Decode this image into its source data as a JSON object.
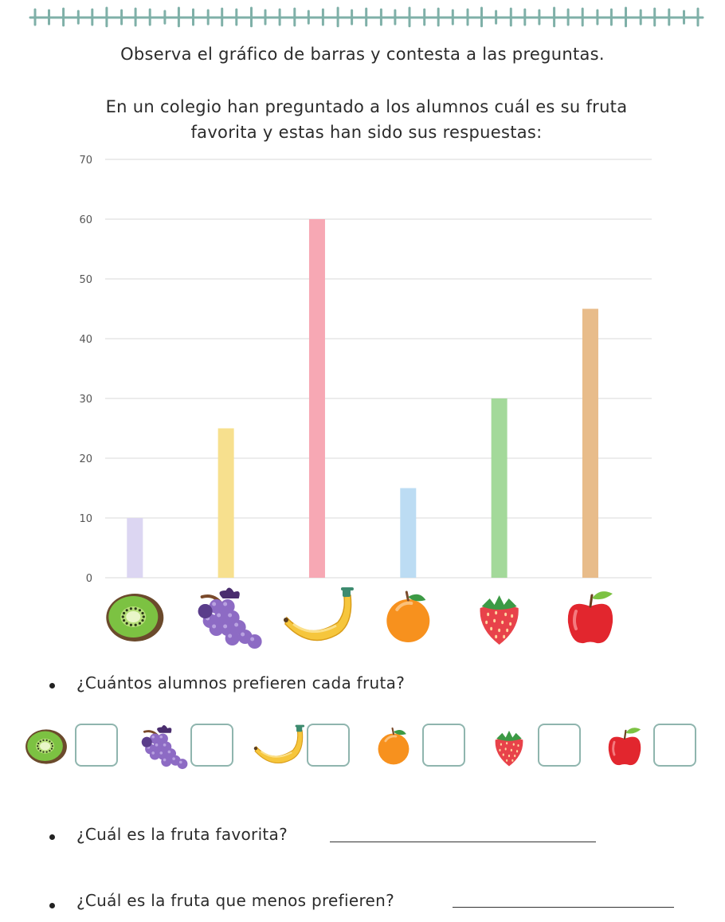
{
  "header": {
    "instruction": "Observa el gráfico de barras y contesta a las preguntas.",
    "context": "En un colegio han preguntado a los alumnos cuál es su fruta favorita y estas han sido sus respuestas:",
    "border_color": "#7fb0a8"
  },
  "chart_data": {
    "type": "bar",
    "categories": [
      "kiwi",
      "uvas",
      "plátano",
      "naranja",
      "fresa",
      "manzana"
    ],
    "values": [
      10,
      25,
      60,
      15,
      30,
      45
    ],
    "colors": [
      "#dcd6f2",
      "#f7e08e",
      "#f7a8b4",
      "#bcdcf3",
      "#a3d99a",
      "#e8bc8a"
    ],
    "ylim": [
      0,
      70
    ],
    "yticks": [
      "0",
      "10",
      "20",
      "30",
      "40",
      "50",
      "60",
      "70"
    ],
    "grid": true
  },
  "fruit_icons": [
    "kiwi-icon",
    "grapes-icon",
    "banana-icon",
    "orange-icon",
    "strawberry-icon",
    "apple-icon"
  ],
  "questions": {
    "q1": "¿Cuántos alumnos prefieren cada fruta?",
    "q2": "¿Cuál es la fruta favorita?",
    "q3": "¿Cuál es la fruta que menos prefieren?"
  }
}
